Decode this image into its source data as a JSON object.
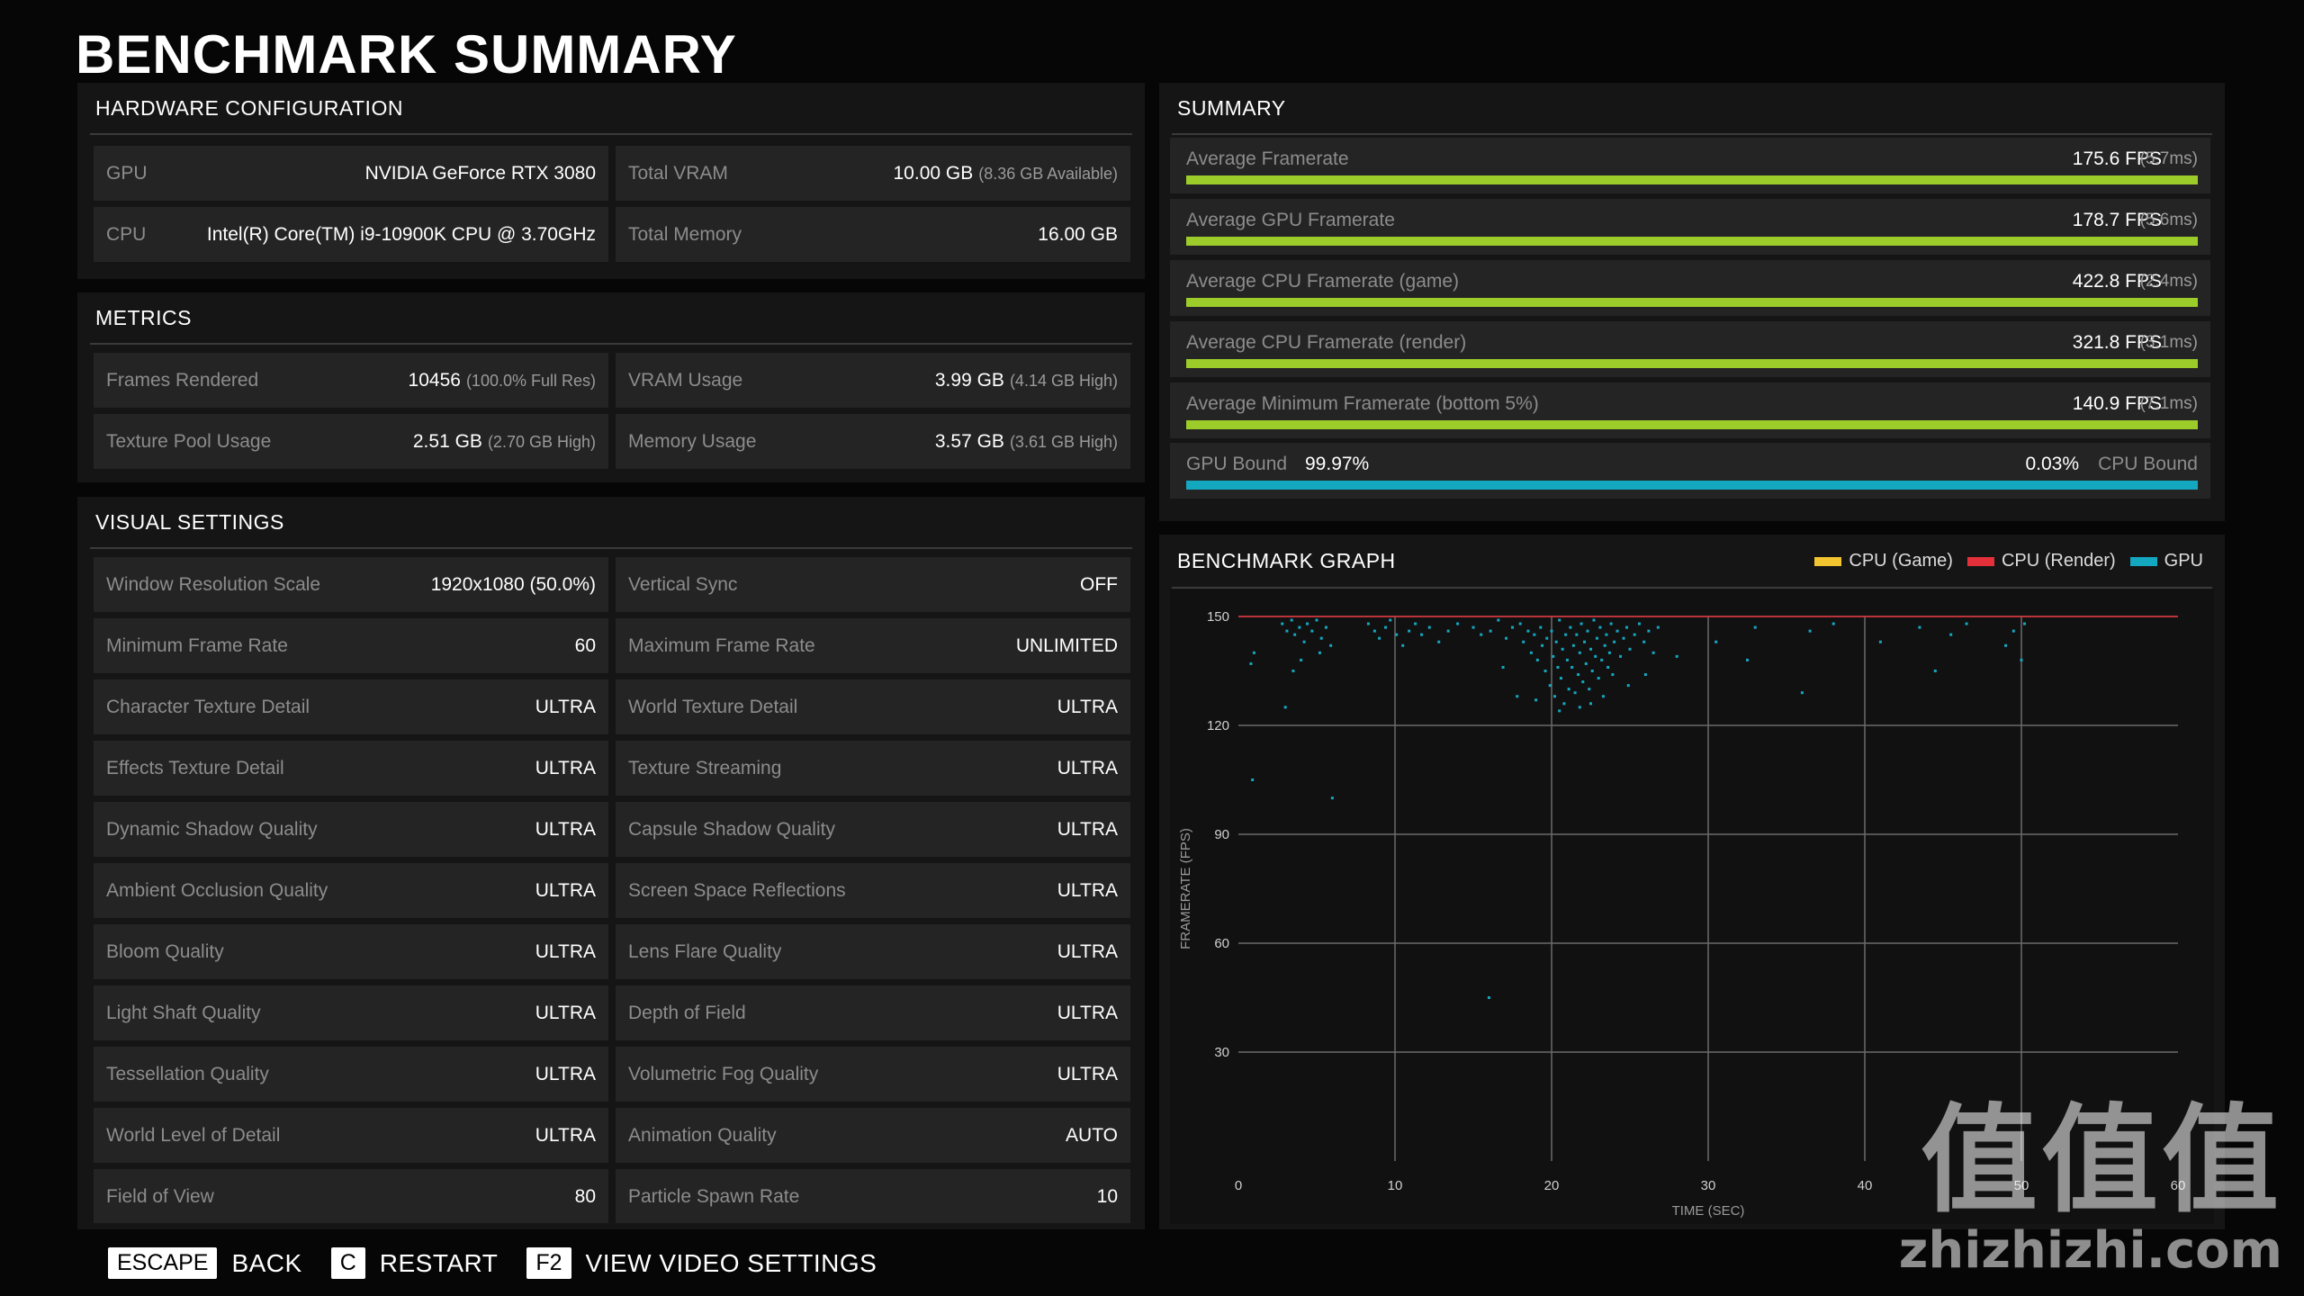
{
  "title": "BENCHMARK SUMMARY",
  "hardware": {
    "header": "HARDWARE CONFIGURATION",
    "rows": [
      [
        {
          "label": "GPU",
          "value": "NVIDIA GeForce RTX 3080",
          "sub": ""
        },
        {
          "label": "Total VRAM",
          "value": "10.00 GB",
          "sub": "(8.36 GB Available)"
        }
      ],
      [
        {
          "label": "CPU",
          "value": "Intel(R) Core(TM) i9-10900K CPU @ 3.70GHz",
          "sub": ""
        },
        {
          "label": "Total Memory",
          "value": "16.00 GB",
          "sub": ""
        }
      ]
    ]
  },
  "metrics": {
    "header": "METRICS",
    "rows": [
      [
        {
          "label": "Frames Rendered",
          "value": "10456",
          "sub": "(100.0% Full Res)"
        },
        {
          "label": "VRAM Usage",
          "value": "3.99 GB",
          "sub": "(4.14 GB High)"
        }
      ],
      [
        {
          "label": "Texture Pool Usage",
          "value": "2.51 GB",
          "sub": "(2.70 GB High)"
        },
        {
          "label": "Memory Usage",
          "value": "3.57 GB",
          "sub": "(3.61 GB High)"
        }
      ]
    ]
  },
  "visual": {
    "header": "VISUAL SETTINGS",
    "rows": [
      [
        {
          "label": "Window Resolution Scale",
          "value": "1920x1080 (50.0%)"
        },
        {
          "label": "Vertical Sync",
          "value": "OFF"
        }
      ],
      [
        {
          "label": "Minimum Frame Rate",
          "value": "60"
        },
        {
          "label": "Maximum Frame Rate",
          "value": "UNLIMITED"
        }
      ],
      [
        {
          "label": "Character Texture Detail",
          "value": "ULTRA"
        },
        {
          "label": "World Texture Detail",
          "value": "ULTRA"
        }
      ],
      [
        {
          "label": "Effects Texture Detail",
          "value": "ULTRA"
        },
        {
          "label": "Texture Streaming",
          "value": "ULTRA"
        }
      ],
      [
        {
          "label": "Dynamic Shadow Quality",
          "value": "ULTRA"
        },
        {
          "label": "Capsule Shadow Quality",
          "value": "ULTRA"
        }
      ],
      [
        {
          "label": "Ambient Occlusion Quality",
          "value": "ULTRA"
        },
        {
          "label": "Screen Space Reflections",
          "value": "ULTRA"
        }
      ],
      [
        {
          "label": "Bloom Quality",
          "value": "ULTRA"
        },
        {
          "label": "Lens Flare Quality",
          "value": "ULTRA"
        }
      ],
      [
        {
          "label": "Light Shaft Quality",
          "value": "ULTRA"
        },
        {
          "label": "Depth of Field",
          "value": "ULTRA"
        }
      ],
      [
        {
          "label": "Tessellation Quality",
          "value": "ULTRA"
        },
        {
          "label": "Volumetric Fog Quality",
          "value": "ULTRA"
        }
      ],
      [
        {
          "label": "World Level of Detail",
          "value": "ULTRA"
        },
        {
          "label": "Animation Quality",
          "value": "AUTO"
        }
      ],
      [
        {
          "label": "Field of View",
          "value": "80"
        },
        {
          "label": "Particle Spawn Rate",
          "value": "10"
        }
      ]
    ]
  },
  "summary": {
    "header": "SUMMARY",
    "rows": [
      {
        "label": "Average Framerate",
        "value": "175.6 FPS",
        "sub": "(5.7ms)",
        "fill": 1.0
      },
      {
        "label": "Average GPU Framerate",
        "value": "178.7 FPS",
        "sub": "(5.6ms)",
        "fill": 1.0
      },
      {
        "label": "Average CPU Framerate (game)",
        "value": "422.8 FPS",
        "sub": "(2.4ms)",
        "fill": 1.0
      },
      {
        "label": "Average CPU Framerate (render)",
        "value": "321.8 FPS",
        "sub": "(3.1ms)",
        "fill": 1.0
      },
      {
        "label": "Average Minimum Framerate (bottom 5%)",
        "value": "140.9 FPS",
        "sub": "(7.1ms)",
        "fill": 1.0
      }
    ],
    "bound": {
      "left_label": "GPU Bound",
      "left_value": "99.97%",
      "right_value": "0.03%",
      "right_label": "CPU Bound",
      "fill": 0.9997
    }
  },
  "graph": {
    "header": "BENCHMARK GRAPH",
    "legend": [
      {
        "name": "CPU (Game)",
        "color": "#f2c530"
      },
      {
        "name": "CPU (Render)",
        "color": "#e3303a"
      },
      {
        "name": "GPU",
        "color": "#14a7c0"
      }
    ]
  },
  "chart_data": {
    "type": "scatter",
    "title": "BENCHMARK GRAPH",
    "xlabel": "TIME (SEC)",
    "ylabel": "FRAMERATE (FPS)",
    "xlim": [
      0,
      60
    ],
    "ylim": [
      0,
      150
    ],
    "x_ticks": [
      0,
      10,
      20,
      30,
      40,
      50,
      60
    ],
    "y_ticks": [
      30,
      60,
      90,
      120,
      150
    ],
    "grid": true,
    "legend_position": "top-right",
    "cap_line": {
      "y": 150,
      "color": "#e3303a"
    },
    "series": [
      {
        "name": "GPU",
        "color": "#14a7c0",
        "points": [
          [
            2.8,
            148
          ],
          [
            3.1,
            146
          ],
          [
            3.4,
            149
          ],
          [
            3.6,
            145
          ],
          [
            3.9,
            147
          ],
          [
            4.2,
            143
          ],
          [
            4.4,
            148
          ],
          [
            4.7,
            146
          ],
          [
            5.0,
            149
          ],
          [
            5.3,
            144
          ],
          [
            5.6,
            147
          ],
          [
            5.9,
            142
          ],
          [
            4.0,
            138
          ],
          [
            3.5,
            135
          ],
          [
            5.2,
            140
          ],
          [
            8.3,
            148
          ],
          [
            8.7,
            146
          ],
          [
            9.0,
            144
          ],
          [
            9.4,
            147
          ],
          [
            9.7,
            149
          ],
          [
            10.1,
            145
          ],
          [
            10.5,
            142
          ],
          [
            10.9,
            146
          ],
          [
            11.3,
            148
          ],
          [
            11.7,
            145
          ],
          [
            12.2,
            147
          ],
          [
            12.8,
            143
          ],
          [
            13.4,
            146
          ],
          [
            14.0,
            148
          ],
          [
            15.0,
            147
          ],
          [
            15.5,
            145
          ],
          [
            16.1,
            146
          ],
          [
            16.6,
            149
          ],
          [
            17.1,
            144
          ],
          [
            17.5,
            147
          ],
          [
            18.0,
            148
          ],
          [
            18.2,
            143
          ],
          [
            18.5,
            146
          ],
          [
            18.7,
            140
          ],
          [
            18.9,
            145
          ],
          [
            19.1,
            138
          ],
          [
            19.3,
            147
          ],
          [
            19.4,
            142
          ],
          [
            19.6,
            135
          ],
          [
            19.7,
            144
          ],
          [
            19.9,
            131
          ],
          [
            20.0,
            146
          ],
          [
            20.1,
            139
          ],
          [
            20.2,
            128
          ],
          [
            20.3,
            143
          ],
          [
            20.4,
            136
          ],
          [
            20.5,
            149
          ],
          [
            20.6,
            133
          ],
          [
            20.7,
            141
          ],
          [
            20.8,
            126
          ],
          [
            20.9,
            145
          ],
          [
            21.0,
            138
          ],
          [
            21.1,
            130
          ],
          [
            21.2,
            147
          ],
          [
            21.3,
            136
          ],
          [
            21.4,
            142
          ],
          [
            21.5,
            129
          ],
          [
            21.6,
            145
          ],
          [
            21.7,
            134
          ],
          [
            21.8,
            140
          ],
          [
            21.9,
            148
          ],
          [
            22.0,
            132
          ],
          [
            22.1,
            143
          ],
          [
            22.2,
            137
          ],
          [
            22.3,
            146
          ],
          [
            22.4,
            130
          ],
          [
            22.5,
            141
          ],
          [
            22.6,
            135
          ],
          [
            22.7,
            149
          ],
          [
            22.8,
            139
          ],
          [
            22.9,
            144
          ],
          [
            23.0,
            133
          ],
          [
            23.1,
            147
          ],
          [
            23.2,
            138
          ],
          [
            23.3,
            128
          ],
          [
            23.4,
            142
          ],
          [
            23.5,
            145
          ],
          [
            23.6,
            136
          ],
          [
            23.7,
            140
          ],
          [
            23.8,
            148
          ],
          [
            23.9,
            134
          ],
          [
            24.0,
            143
          ],
          [
            24.2,
            146
          ],
          [
            24.4,
            139
          ],
          [
            24.6,
            144
          ],
          [
            24.8,
            147
          ],
          [
            25.0,
            141
          ],
          [
            25.3,
            145
          ],
          [
            25.6,
            148
          ],
          [
            25.9,
            143
          ],
          [
            26.2,
            146
          ],
          [
            26.5,
            140
          ],
          [
            26.8,
            147
          ],
          [
            19.0,
            127
          ],
          [
            20.5,
            124
          ],
          [
            21.8,
            125
          ],
          [
            22.5,
            126
          ],
          [
            17.8,
            128
          ],
          [
            16.9,
            136
          ],
          [
            24.9,
            131
          ],
          [
            26.0,
            134
          ],
          [
            33.0,
            147
          ],
          [
            36.5,
            146
          ],
          [
            38.0,
            148
          ],
          [
            41.0,
            143
          ],
          [
            43.5,
            147
          ],
          [
            45.5,
            145
          ],
          [
            46.5,
            148
          ],
          [
            49.0,
            142
          ],
          [
            49.5,
            146
          ],
          [
            50.0,
            138
          ],
          [
            50.2,
            148
          ],
          [
            36.0,
            129
          ],
          [
            32.5,
            138
          ],
          [
            44.5,
            135
          ],
          [
            0.8,
            137
          ],
          [
            1.0,
            140
          ],
          [
            0.9,
            105
          ],
          [
            6.0,
            100
          ],
          [
            16.0,
            45
          ],
          [
            3.0,
            125
          ],
          [
            28.0,
            139
          ],
          [
            30.5,
            143
          ]
        ]
      }
    ]
  },
  "footer": [
    {
      "key": "ESCAPE",
      "action": "BACK"
    },
    {
      "key": "C",
      "action": "RESTART"
    },
    {
      "key": "F2",
      "action": "VIEW VIDEO SETTINGS"
    }
  ],
  "watermark": {
    "line1": "值值值",
    "line2": "zhizhizhi.com"
  }
}
